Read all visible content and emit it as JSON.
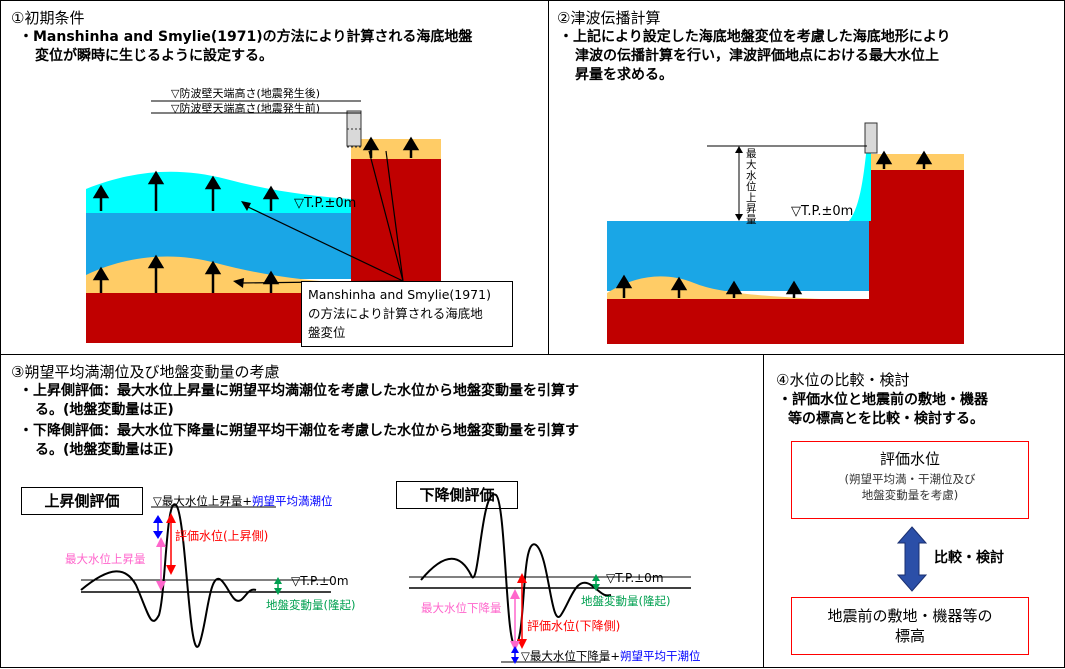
{
  "panel1": {
    "title": "①初期条件",
    "desc_line1": "・Manshinha and Smylie(1971)の方法により計算される海底地盤",
    "desc_line2": "変位が瞬時に生じるように設定する。",
    "label_after": "▽防波壁天端高さ(地震発生後)",
    "label_before": "▽防波壁天端高さ(地震発生前)",
    "tp_label": "▽T.P.±0m",
    "callout_line1": "Manshinha and Smylie(1971)",
    "callout_line2": "の方法により計算される海底地",
    "callout_line3": "盤変位"
  },
  "panel2": {
    "title": "②津波伝播計算",
    "desc_line1": "・上記により設定した海底地盤変位を考慮した海底地形により",
    "desc_line2": "津波の伝播計算を行い，津波評価地点における最大水位上",
    "desc_line3": "昇量を求める。",
    "vertical_label": "最大水位上昇量",
    "tp_label": "▽T.P.±0m"
  },
  "panel3": {
    "title": "③朔望平均満潮位及び地盤変動量の考慮",
    "desc1_line1": "・上昇側評価：最大水位上昇量に朔望平均満潮位を考慮した水位から地盤変動量を引算す",
    "desc1_line2": "る。(地盤変動量は正)",
    "desc2_line1": "・下降側評価：最大水位下降量に朔望平均干潮位を考慮した水位から地盤変動量を引算す",
    "desc2_line2": "る。(地盤変動量は正)",
    "up_box": "上昇側評価",
    "down_box": "下降側評価",
    "up_top_label_a": "▽最大水位上昇量+",
    "up_top_label_b": "朔望平均満潮位",
    "up_eval": "評価水位(上昇側)",
    "up_max": "最大水位上昇量",
    "up_tp": "▽T.P.±0m",
    "up_ground": "地盤変動量(隆起)",
    "down_tp": "▽T.P.±0m",
    "down_ground": "地盤変動量(隆起)",
    "down_max": "最大水位下降量",
    "down_eval": "評価水位(下降側)",
    "down_bottom_label_a": "▽最大水位下降量+",
    "down_bottom_label_b": "朔望平均干潮位"
  },
  "panel4": {
    "title": "④水位の比較・検討",
    "desc_line1": "・評価水位と地震前の敷地・機器",
    "desc_line2": "等の標高とを比較・検討する。",
    "box1_title": "評価水位",
    "box1_sub1": "(朔望平均満・干潮位及び",
    "box1_sub2": "地盤変動量を考慮)",
    "compare_label": "比較・検討",
    "box2_line1": "地震前の敷地・機器等の",
    "box2_line2": "標高"
  },
  "colors": {
    "sea_light": "#00ffff",
    "sea": "#1aa6e6",
    "sediment": "#ffcc66",
    "ground": "#c00000",
    "red_text": "#ff0000",
    "blue_text": "#0000ff",
    "pink": "#ff66cc",
    "green": "#00a050"
  }
}
